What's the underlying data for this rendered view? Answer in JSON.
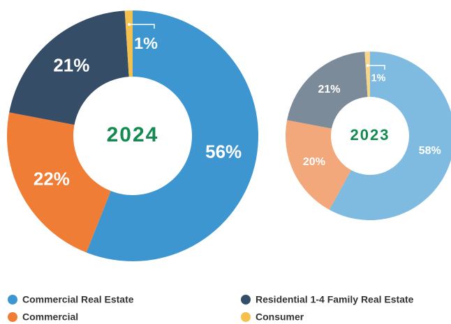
{
  "chart_data": [
    {
      "type": "pie",
      "title": "2024",
      "categories": [
        "Commercial Real Estate",
        "Commercial",
        "Residential 1-4 Family Real Estate",
        "Consumer"
      ],
      "values": [
        56,
        22,
        21,
        1
      ],
      "value_labels": [
        "56%",
        "22%",
        "21%",
        "1%"
      ],
      "colors": [
        "#3d96d0",
        "#ef7d35",
        "#354d66",
        "#f5c14e"
      ]
    },
    {
      "type": "pie",
      "title": "2023",
      "values": [
        58,
        20,
        21,
        1
      ],
      "value_labels": [
        "58%",
        "20%",
        "21%",
        "1%"
      ],
      "colors": [
        "#7fbbe0",
        "#f2a87a",
        "#7c8b99",
        "#f7d58a"
      ]
    }
  ]
}
